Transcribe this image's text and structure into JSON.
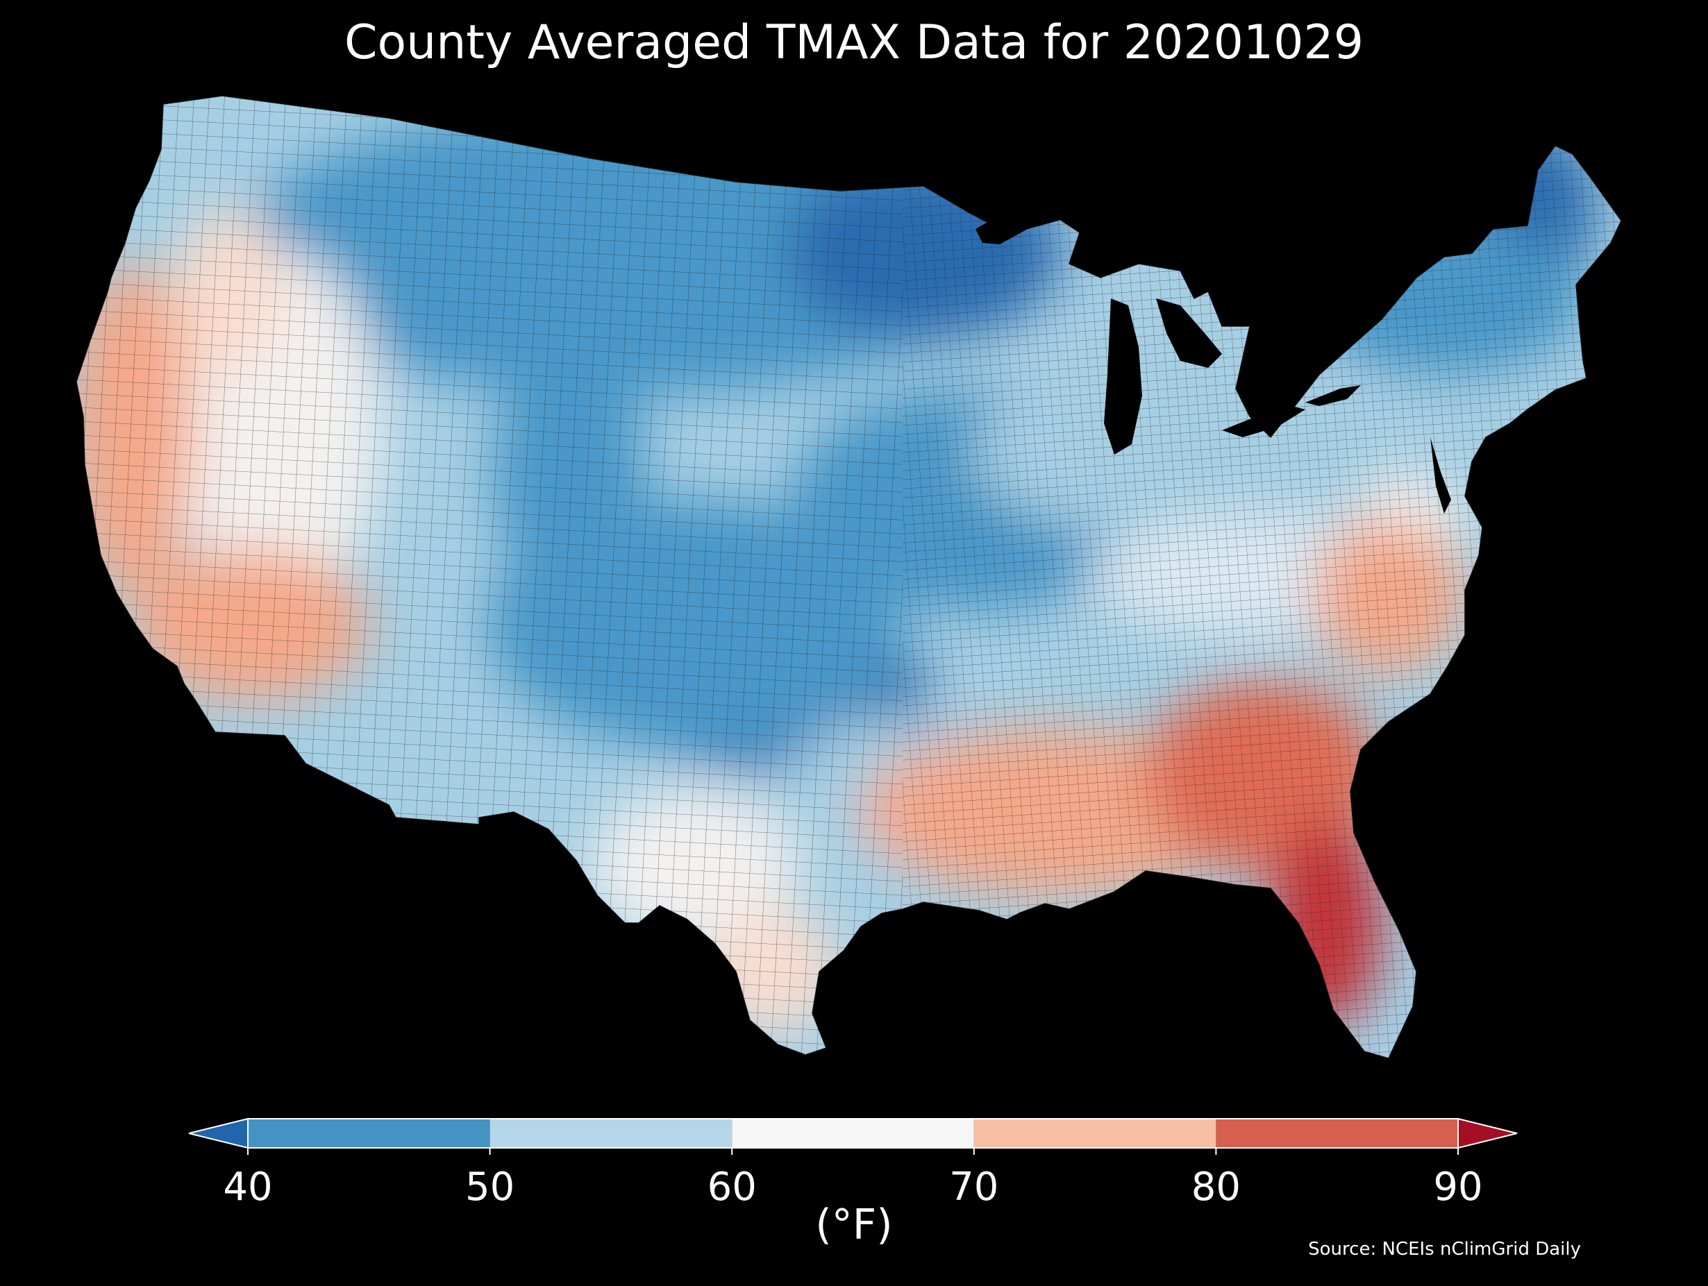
{
  "title": "County Averaged TMAX Data for 20201029",
  "source": "Source: NCEIs nClimGrid Daily",
  "colorbar": {
    "label": "(°F)",
    "ticks": [
      "40",
      "50",
      "60",
      "70",
      "80",
      "90"
    ],
    "bins": [
      {
        "from": 40,
        "to": 50,
        "color": "#4393c3"
      },
      {
        "from": 50,
        "to": 60,
        "color": "#b4d6e8"
      },
      {
        "from": 60,
        "to": 70,
        "color": "#f7f7f7"
      },
      {
        "from": 70,
        "to": 80,
        "color": "#f7c0a4"
      },
      {
        "from": 80,
        "to": 90,
        "color": "#d6604d"
      }
    ],
    "under_color": "#2166ac",
    "over_color": "#a50f26"
  },
  "map_colors": {
    "deep_blue": "#2c6cb0",
    "blue": "#4a98c9",
    "light_blue": "#a6cfe4",
    "pale_blue": "#dbe9f3",
    "white": "#f3f1f0",
    "pale_red": "#f9ddcf",
    "light_red": "#f4a889",
    "red": "#e06c55",
    "deep_red": "#c33038",
    "county_line": "#222222"
  }
}
